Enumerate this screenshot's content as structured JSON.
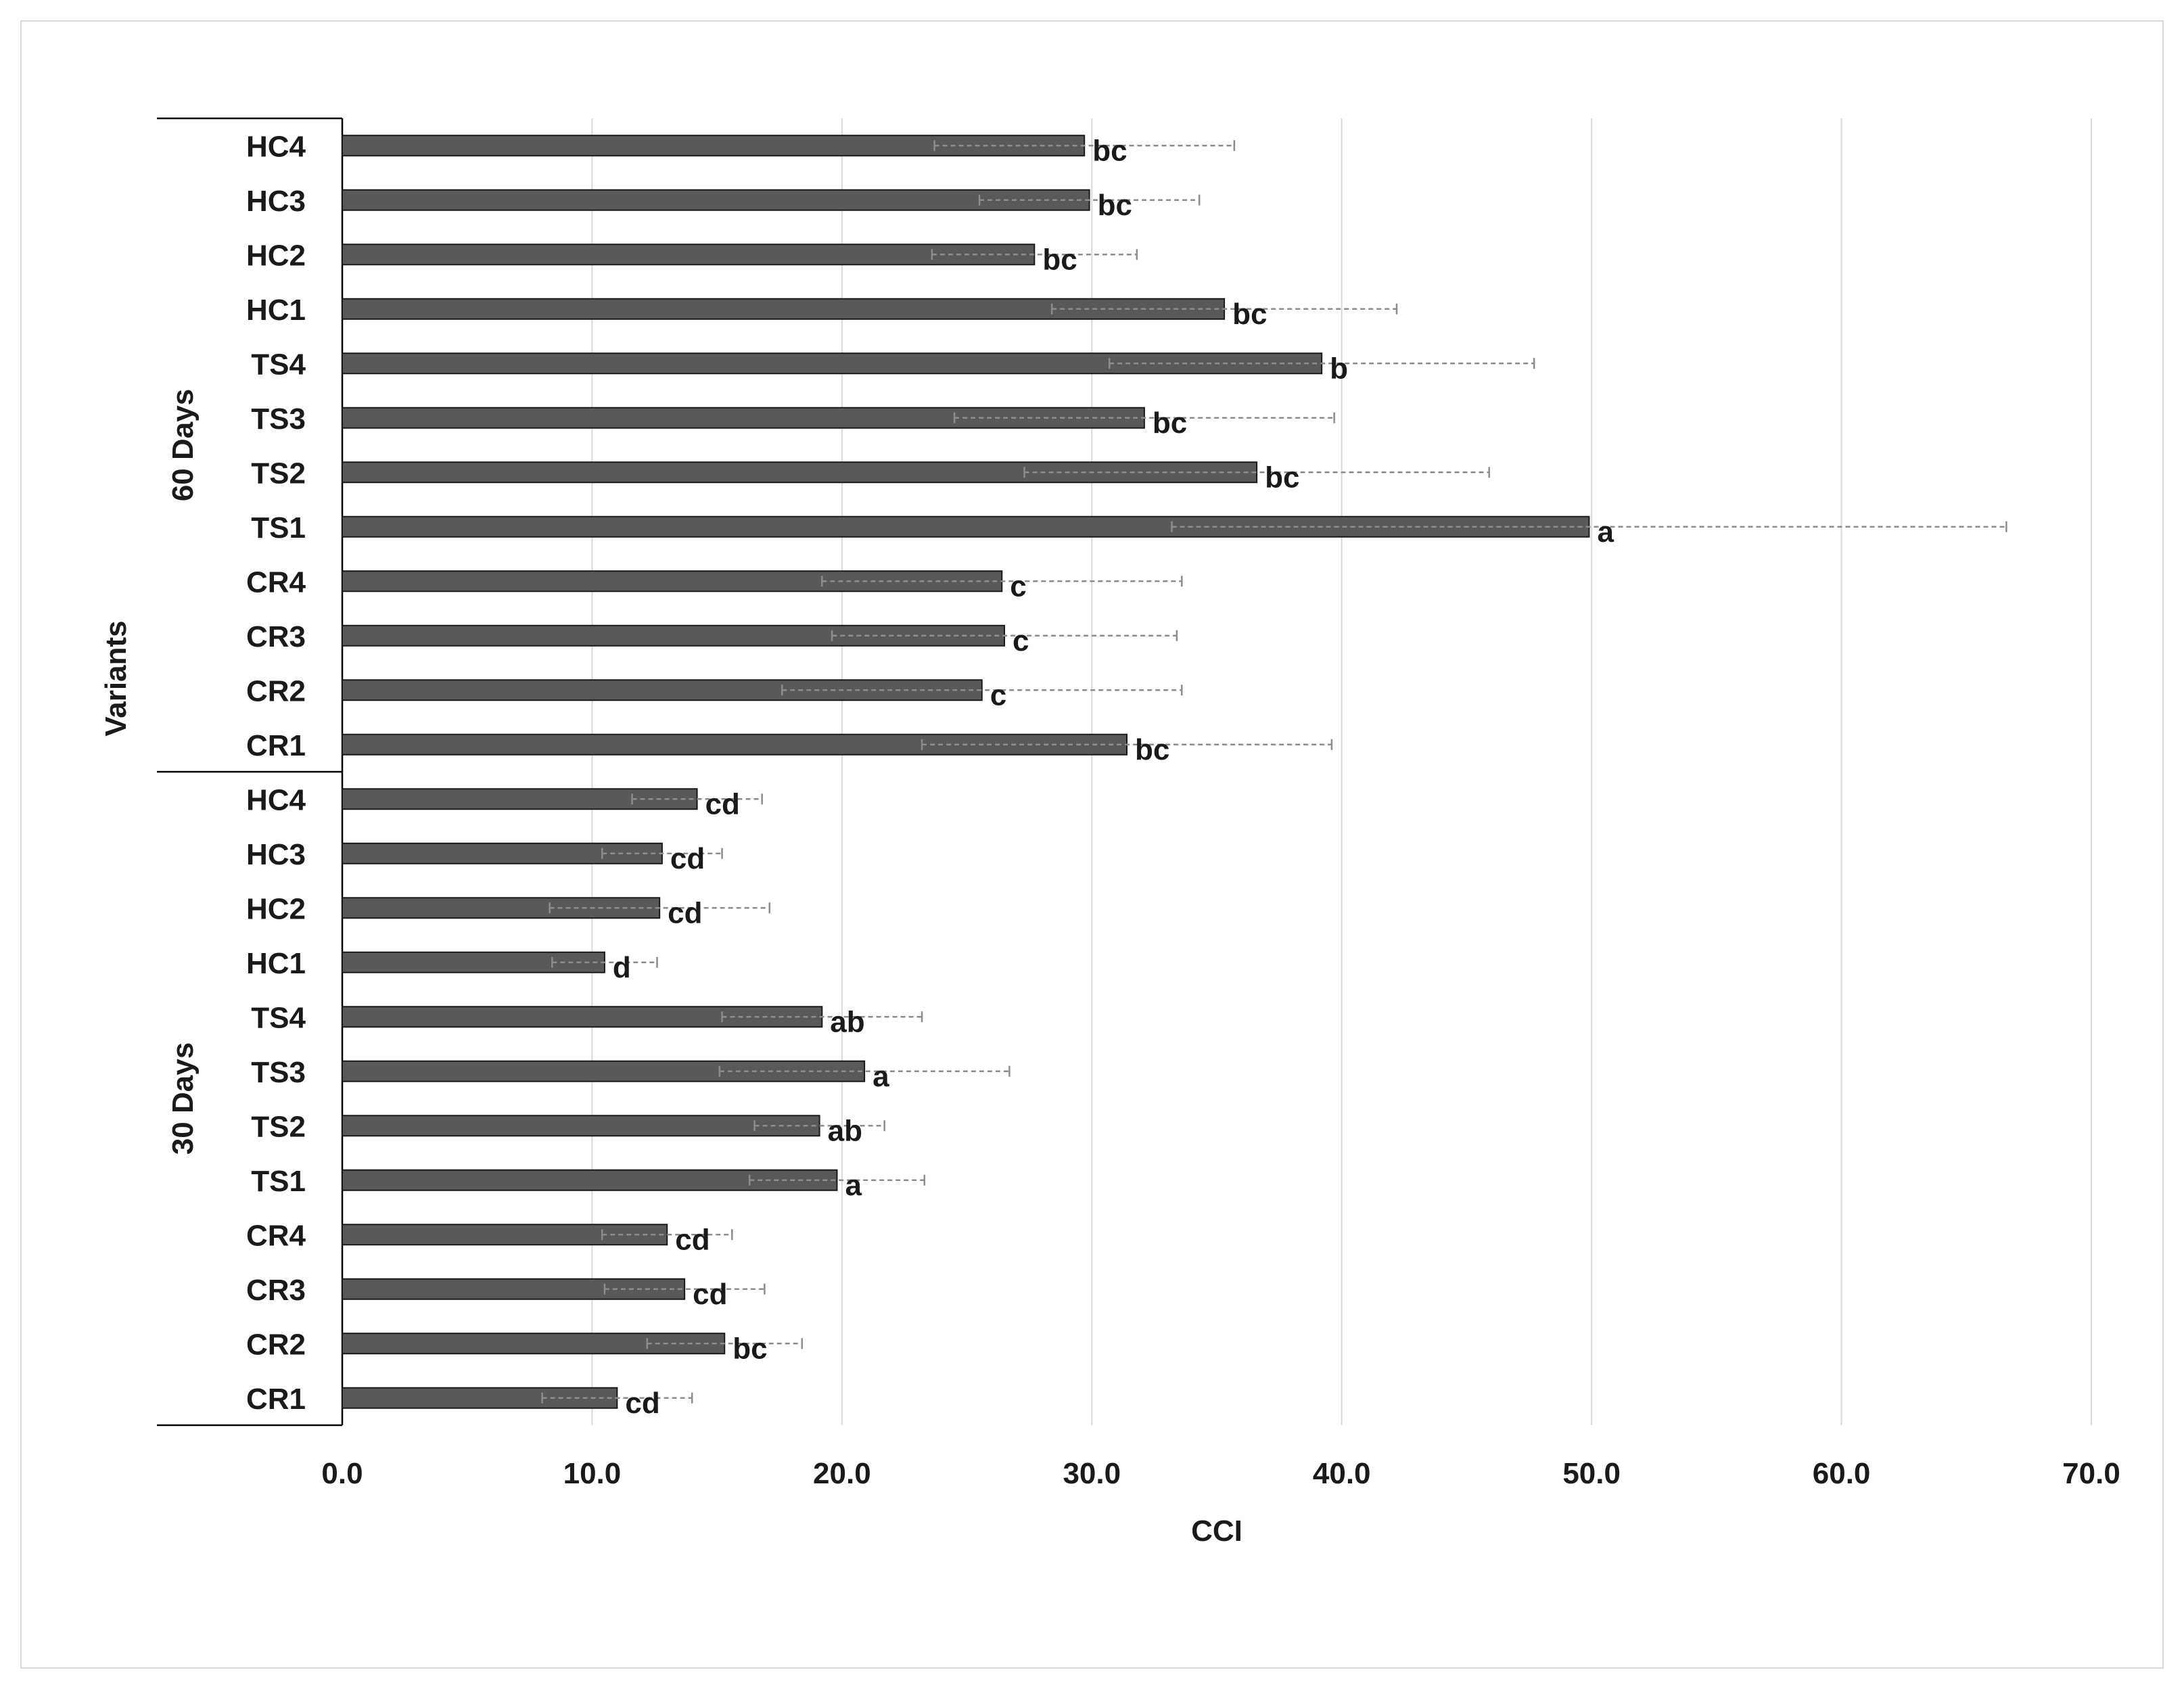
{
  "chart_data": {
    "type": "bar",
    "orientation": "horizontal",
    "xlabel": "CCI",
    "ylabel": "Variants",
    "xlim": [
      0,
      70
    ],
    "xticks": [
      "0.0",
      "10.0",
      "20.0",
      "30.0",
      "40.0",
      "50.0",
      "60.0",
      "70.0"
    ],
    "grid": true,
    "bar_color": "#595959",
    "groups": [
      {
        "name": "60 Days",
        "categories": [
          "HC4",
          "HC3",
          "HC2",
          "HC1",
          "TS4",
          "TS3",
          "TS2",
          "TS1",
          "CR4",
          "CR3",
          "CR2",
          "CR1"
        ],
        "values": [
          29.7,
          29.9,
          27.7,
          35.3,
          39.2,
          32.1,
          36.6,
          49.9,
          26.4,
          26.5,
          25.6,
          31.4
        ],
        "errors": [
          6.0,
          4.4,
          4.1,
          6.9,
          8.5,
          7.6,
          9.3,
          16.7,
          7.2,
          6.9,
          8.0,
          8.2
        ],
        "letters": [
          "bc",
          "bc",
          "bc",
          "bc",
          "b",
          "bc",
          "bc",
          "a",
          "c",
          "c",
          "c",
          "bc"
        ]
      },
      {
        "name": "30 Days",
        "categories": [
          "HC4",
          "HC3",
          "HC2",
          "HC1",
          "TS4",
          "TS3",
          "TS2",
          "TS1",
          "CR4",
          "CR3",
          "CR2",
          "CR1"
        ],
        "values": [
          14.2,
          12.8,
          12.7,
          10.5,
          19.2,
          20.9,
          19.1,
          19.8,
          13.0,
          13.7,
          15.3,
          11.0
        ],
        "errors": [
          2.6,
          2.4,
          4.4,
          2.1,
          4.0,
          5.8,
          2.6,
          3.5,
          2.6,
          3.2,
          3.1,
          3.0
        ],
        "letters": [
          "cd",
          "cd",
          "cd",
          "d",
          "ab",
          "a",
          "ab",
          "a",
          "cd",
          "cd",
          "bc",
          "cd"
        ]
      }
    ]
  }
}
